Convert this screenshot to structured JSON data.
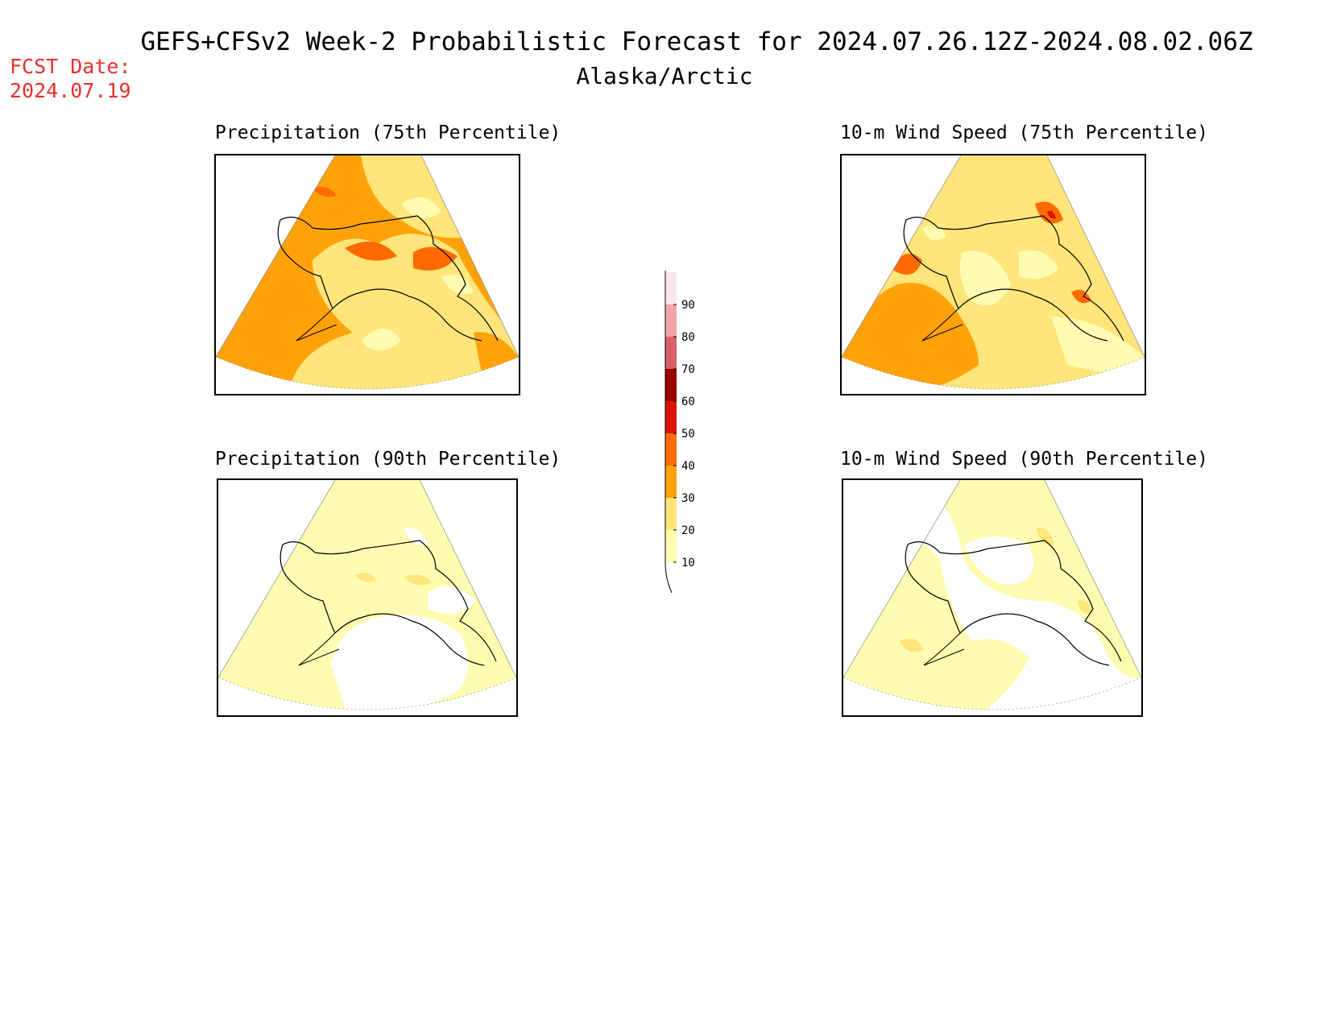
{
  "header": {
    "title": "GEFS+CFSv2 Week-2 Probabilistic Forecast for 2024.07.26.12Z-2024.08.02.06Z",
    "subtitle": "Alaska/Arctic",
    "fcst_label": "FCST Date:",
    "fcst_date": "2024.07.19"
  },
  "panels": [
    {
      "id": "precip75",
      "title": "Precipitation (75th Percentile)"
    },
    {
      "id": "wind75",
      "title": "10-m Wind Speed (75th Percentile)"
    },
    {
      "id": "precip90",
      "title": "Precipitation (90th Percentile)"
    },
    {
      "id": "wind90",
      "title": "10-m Wind Speed (90th Percentile)"
    }
  ],
  "legend": {
    "levels": [
      "10",
      "20",
      "30",
      "40",
      "50",
      "60",
      "70",
      "80",
      "90"
    ],
    "colors": [
      "#fffbb0",
      "#ffe57a",
      "#ffa20a",
      "#ff6a00",
      "#de1200",
      "#9a0000",
      "#d8626a",
      "#f2a3a7",
      "#fbe6e8"
    ]
  }
}
